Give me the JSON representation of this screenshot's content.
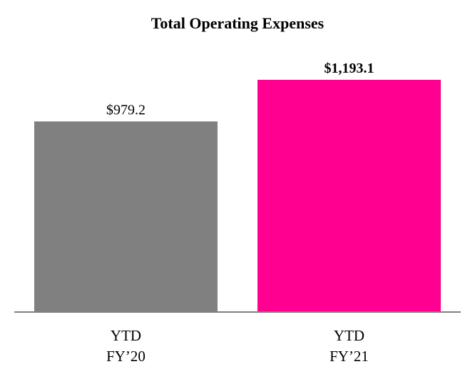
{
  "chart_data": {
    "type": "bar",
    "title": "Total Operating Expenses",
    "xlabel": "",
    "ylabel": "",
    "ylim": [
      0,
      1193.1
    ],
    "grid": false,
    "categories": [
      [
        "YTD",
        "FY’20"
      ],
      [
        "YTD",
        "FY’21"
      ]
    ],
    "values": [
      979.2,
      1193.1
    ],
    "data_labels": [
      "$979.2",
      "$1,193.1"
    ],
    "data_label_bold": [
      false,
      true
    ],
    "colors": [
      "#808080",
      "#FF0090"
    ],
    "axis_color": "#808080"
  }
}
